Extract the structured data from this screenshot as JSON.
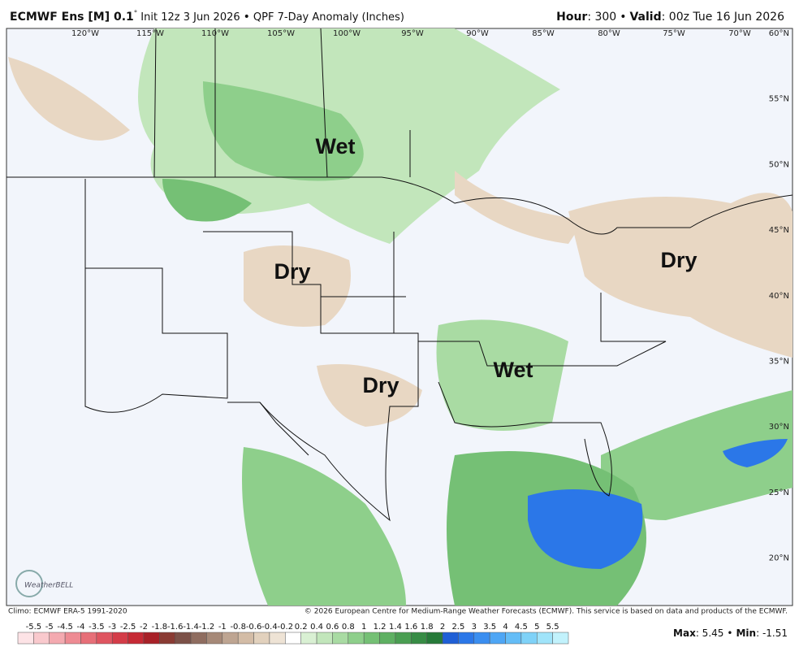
{
  "header": {
    "model": "ECMWF Ens [M] 0.1",
    "degree": "°",
    "init": "Init 12z 3 Jun 2026",
    "bullet": "•",
    "product": "QPF 7-Day Anomaly (Inches)",
    "hour_label": "Hour",
    "hour_value": ": 300",
    "valid_label": "Valid",
    "valid_value": ": 00z Tue 16 Jun 2026"
  },
  "map": {
    "longitudes": [
      "120°W",
      "115°W",
      "110°W",
      "105°W",
      "100°W",
      "95°W",
      "90°W",
      "85°W",
      "80°W",
      "75°W",
      "70°W"
    ],
    "latitudes": [
      "60°N",
      "55°N",
      "50°N",
      "45°N",
      "40°N",
      "35°N",
      "30°N",
      "25°N",
      "20°N"
    ],
    "annotations": [
      "Wet",
      "Dry",
      "Dry",
      "Wet",
      "Dry"
    ],
    "logo": "WeatherBELL"
  },
  "footer": {
    "climo": "Climo: ECMWF ERA-5 1991-2020",
    "copyright": "© 2026 European Centre for Medium-Range Weather Forecasts (ECMWF). This service is based on data and products of the ECMWF.",
    "max_label": "Max",
    "max_value": ": 5.45",
    "min_label": "Min",
    "min_value": ": -1.51"
  },
  "colorbar": {
    "labels": [
      "-5.5",
      "-5",
      "-4.5",
      "-4",
      "-3.5",
      "-3",
      "-2.5",
      "-2",
      "-1.8",
      "-1.6",
      "-1.4",
      "-1.2",
      "-1",
      "-0.8",
      "-0.6",
      "-0.4",
      "-0.2",
      "0.2",
      "0.4",
      "0.6",
      "0.8",
      "1",
      "1.2",
      "1.4",
      "1.6",
      "1.8",
      "2",
      "2.5",
      "3",
      "3.5",
      "4",
      "4.5",
      "5",
      "5.5"
    ],
    "colors": [
      "#fde3e6",
      "#f9c9cd",
      "#f4aab0",
      "#ee8b93",
      "#e76f78",
      "#df5560",
      "#d43c48",
      "#c62a35",
      "#a82128",
      "#8a3b33",
      "#7c5148",
      "#8f6d60",
      "#a68978",
      "#bea592",
      "#d3bca6",
      "#e2d1bd",
      "#eee3d5",
      "#ffffff",
      "#d9f0d3",
      "#c2e6bb",
      "#a9dba3",
      "#8ecf8b",
      "#75c075",
      "#5eb062",
      "#4a9e52",
      "#378c45",
      "#267a39",
      "#1f5fd6",
      "#2b77e8",
      "#3a8ef0",
      "#4ea6f5",
      "#64bdf7",
      "#7fd2f8",
      "#a0e4fa",
      "#c2f2fc"
    ]
  }
}
